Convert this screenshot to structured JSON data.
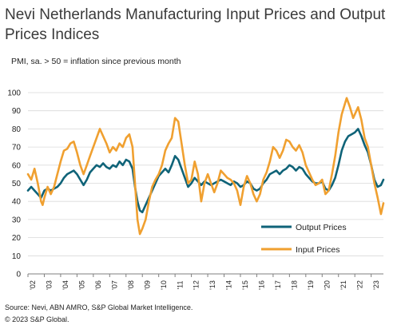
{
  "header": {
    "title": "Nevi Netherlands Manufacturing Input Prices and Output Prices Indices",
    "subtitle": "PMI, sa. > 50 = inflation since previous month"
  },
  "footer": {
    "source": "Source: Nevi, ABN AMRO, S&P Global Market Intelligence.",
    "copyright": "© 2023 S&P Global."
  },
  "chart_data": {
    "type": "line",
    "ylim": [
      0,
      100
    ],
    "yticks": [
      0,
      10,
      20,
      30,
      40,
      50,
      60,
      70,
      80,
      90,
      100
    ],
    "xlim": [
      2002,
      2023.75
    ],
    "xtick_labels": [
      "'02",
      "'03",
      "'04",
      "'05",
      "'06",
      "'07",
      "'08",
      "'09",
      "'10",
      "'11",
      "'12",
      "'13",
      "'14",
      "'15",
      "'16",
      "'17",
      "'18",
      "'19",
      "'20",
      "'21",
      "'22",
      "'23"
    ],
    "grid": "horizontal",
    "legend_position": "bottom-right",
    "series": [
      {
        "name": "Output Prices",
        "color": "#0f6378",
        "points": [
          [
            2002.0,
            46
          ],
          [
            2002.2,
            48
          ],
          [
            2002.4,
            46
          ],
          [
            2002.6,
            44
          ],
          [
            2002.8,
            42
          ],
          [
            2003.0,
            46
          ],
          [
            2003.2,
            47
          ],
          [
            2003.4,
            46
          ],
          [
            2003.6,
            47
          ],
          [
            2003.8,
            48
          ],
          [
            2004.0,
            50
          ],
          [
            2004.2,
            53
          ],
          [
            2004.4,
            55
          ],
          [
            2004.6,
            56
          ],
          [
            2004.8,
            57
          ],
          [
            2005.0,
            55
          ],
          [
            2005.2,
            52
          ],
          [
            2005.4,
            49
          ],
          [
            2005.6,
            52
          ],
          [
            2005.8,
            56
          ],
          [
            2006.0,
            58
          ],
          [
            2006.2,
            60
          ],
          [
            2006.4,
            59
          ],
          [
            2006.6,
            61
          ],
          [
            2006.8,
            59
          ],
          [
            2007.0,
            58
          ],
          [
            2007.2,
            60
          ],
          [
            2007.4,
            59
          ],
          [
            2007.6,
            62
          ],
          [
            2007.8,
            60
          ],
          [
            2008.0,
            63
          ],
          [
            2008.2,
            62
          ],
          [
            2008.4,
            58
          ],
          [
            2008.55,
            48
          ],
          [
            2008.7,
            40
          ],
          [
            2008.85,
            35
          ],
          [
            2009.0,
            34
          ],
          [
            2009.2,
            38
          ],
          [
            2009.4,
            42
          ],
          [
            2009.6,
            46
          ],
          [
            2009.8,
            50
          ],
          [
            2010.0,
            54
          ],
          [
            2010.2,
            56
          ],
          [
            2010.4,
            58
          ],
          [
            2010.6,
            56
          ],
          [
            2010.8,
            60
          ],
          [
            2011.0,
            65
          ],
          [
            2011.2,
            63
          ],
          [
            2011.4,
            58
          ],
          [
            2011.6,
            53
          ],
          [
            2011.8,
            48
          ],
          [
            2012.0,
            50
          ],
          [
            2012.2,
            53
          ],
          [
            2012.4,
            51
          ],
          [
            2012.6,
            49
          ],
          [
            2012.8,
            51
          ],
          [
            2013.0,
            50
          ],
          [
            2013.2,
            49
          ],
          [
            2013.4,
            50
          ],
          [
            2013.6,
            51
          ],
          [
            2013.8,
            52
          ],
          [
            2014.0,
            51
          ],
          [
            2014.2,
            50
          ],
          [
            2014.4,
            49
          ],
          [
            2014.6,
            51
          ],
          [
            2014.8,
            50
          ],
          [
            2015.0,
            48
          ],
          [
            2015.2,
            49
          ],
          [
            2015.4,
            51
          ],
          [
            2015.6,
            50
          ],
          [
            2015.8,
            47
          ],
          [
            2016.0,
            46
          ],
          [
            2016.2,
            47
          ],
          [
            2016.4,
            50
          ],
          [
            2016.6,
            52
          ],
          [
            2016.8,
            55
          ],
          [
            2017.0,
            56
          ],
          [
            2017.2,
            57
          ],
          [
            2017.4,
            55
          ],
          [
            2017.6,
            57
          ],
          [
            2017.8,
            58
          ],
          [
            2018.0,
            60
          ],
          [
            2018.2,
            59
          ],
          [
            2018.4,
            57
          ],
          [
            2018.6,
            59
          ],
          [
            2018.8,
            58
          ],
          [
            2019.0,
            55
          ],
          [
            2019.2,
            53
          ],
          [
            2019.4,
            51
          ],
          [
            2019.6,
            50
          ],
          [
            2019.8,
            50
          ],
          [
            2020.0,
            51
          ],
          [
            2020.2,
            47
          ],
          [
            2020.4,
            46
          ],
          [
            2020.6,
            49
          ],
          [
            2020.8,
            53
          ],
          [
            2021.0,
            60
          ],
          [
            2021.2,
            68
          ],
          [
            2021.4,
            73
          ],
          [
            2021.6,
            76
          ],
          [
            2021.8,
            77
          ],
          [
            2022.0,
            78
          ],
          [
            2022.2,
            80
          ],
          [
            2022.4,
            76
          ],
          [
            2022.6,
            71
          ],
          [
            2022.8,
            67
          ],
          [
            2023.0,
            60
          ],
          [
            2023.2,
            52
          ],
          [
            2023.4,
            48
          ],
          [
            2023.6,
            49
          ],
          [
            2023.75,
            52
          ]
        ]
      },
      {
        "name": "Input Prices",
        "color": "#f0a030",
        "points": [
          [
            2002.0,
            55
          ],
          [
            2002.2,
            52
          ],
          [
            2002.4,
            58
          ],
          [
            2002.6,
            50
          ],
          [
            2002.8,
            40
          ],
          [
            2002.9,
            38
          ],
          [
            2003.0,
            42
          ],
          [
            2003.2,
            48
          ],
          [
            2003.4,
            44
          ],
          [
            2003.6,
            48
          ],
          [
            2003.8,
            55
          ],
          [
            2004.0,
            62
          ],
          [
            2004.2,
            68
          ],
          [
            2004.4,
            69
          ],
          [
            2004.6,
            72
          ],
          [
            2004.8,
            73
          ],
          [
            2005.0,
            67
          ],
          [
            2005.2,
            60
          ],
          [
            2005.4,
            55
          ],
          [
            2005.6,
            60
          ],
          [
            2005.8,
            65
          ],
          [
            2006.0,
            70
          ],
          [
            2006.2,
            75
          ],
          [
            2006.4,
            80
          ],
          [
            2006.6,
            76
          ],
          [
            2006.8,
            72
          ],
          [
            2007.0,
            67
          ],
          [
            2007.2,
            70
          ],
          [
            2007.4,
            68
          ],
          [
            2007.6,
            72
          ],
          [
            2007.8,
            70
          ],
          [
            2008.0,
            75
          ],
          [
            2008.2,
            77
          ],
          [
            2008.4,
            70
          ],
          [
            2008.55,
            50
          ],
          [
            2008.7,
            30
          ],
          [
            2008.85,
            22
          ],
          [
            2009.0,
            25
          ],
          [
            2009.2,
            30
          ],
          [
            2009.4,
            40
          ],
          [
            2009.6,
            48
          ],
          [
            2009.8,
            52
          ],
          [
            2010.0,
            55
          ],
          [
            2010.2,
            60
          ],
          [
            2010.4,
            68
          ],
          [
            2010.6,
            72
          ],
          [
            2010.8,
            75
          ],
          [
            2011.0,
            86
          ],
          [
            2011.2,
            84
          ],
          [
            2011.4,
            72
          ],
          [
            2011.6,
            60
          ],
          [
            2011.8,
            50
          ],
          [
            2012.0,
            52
          ],
          [
            2012.2,
            62
          ],
          [
            2012.4,
            55
          ],
          [
            2012.6,
            40
          ],
          [
            2012.8,
            50
          ],
          [
            2013.0,
            55
          ],
          [
            2013.2,
            50
          ],
          [
            2013.4,
            45
          ],
          [
            2013.6,
            50
          ],
          [
            2013.8,
            57
          ],
          [
            2014.0,
            55
          ],
          [
            2014.2,
            53
          ],
          [
            2014.4,
            52
          ],
          [
            2014.6,
            50
          ],
          [
            2014.8,
            46
          ],
          [
            2015.0,
            38
          ],
          [
            2015.2,
            48
          ],
          [
            2015.4,
            54
          ],
          [
            2015.6,
            50
          ],
          [
            2015.8,
            44
          ],
          [
            2016.0,
            40
          ],
          [
            2016.2,
            44
          ],
          [
            2016.4,
            52
          ],
          [
            2016.6,
            56
          ],
          [
            2016.8,
            62
          ],
          [
            2017.0,
            70
          ],
          [
            2017.2,
            68
          ],
          [
            2017.4,
            64
          ],
          [
            2017.6,
            68
          ],
          [
            2017.8,
            74
          ],
          [
            2018.0,
            73
          ],
          [
            2018.2,
            70
          ],
          [
            2018.4,
            68
          ],
          [
            2018.6,
            71
          ],
          [
            2018.8,
            67
          ],
          [
            2019.0,
            60
          ],
          [
            2019.2,
            56
          ],
          [
            2019.4,
            52
          ],
          [
            2019.6,
            49
          ],
          [
            2019.8,
            50
          ],
          [
            2020.0,
            52
          ],
          [
            2020.2,
            44
          ],
          [
            2020.4,
            46
          ],
          [
            2020.6,
            55
          ],
          [
            2020.8,
            65
          ],
          [
            2021.0,
            78
          ],
          [
            2021.2,
            88
          ],
          [
            2021.4,
            94
          ],
          [
            2021.5,
            97
          ],
          [
            2021.7,
            92
          ],
          [
            2021.9,
            86
          ],
          [
            2022.0,
            88
          ],
          [
            2022.2,
            92
          ],
          [
            2022.4,
            85
          ],
          [
            2022.6,
            75
          ],
          [
            2022.8,
            70
          ],
          [
            2023.0,
            60
          ],
          [
            2023.2,
            50
          ],
          [
            2023.4,
            42
          ],
          [
            2023.6,
            33
          ],
          [
            2023.75,
            39
          ]
        ]
      }
    ]
  }
}
